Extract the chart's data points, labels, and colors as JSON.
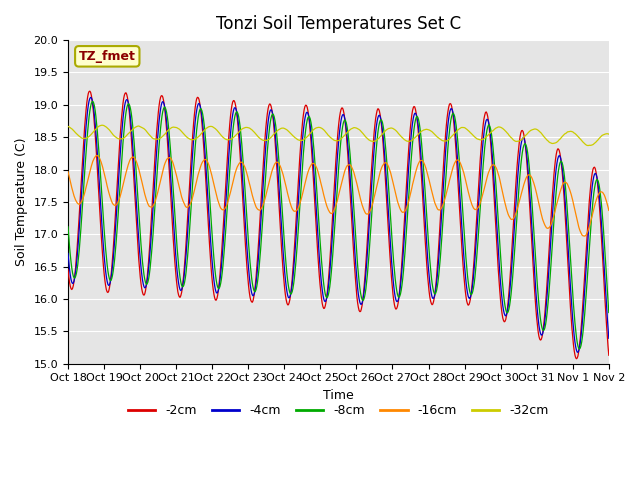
{
  "title": "Tonzi Soil Temperatures Set C",
  "xlabel": "Time",
  "ylabel": "Soil Temperature (C)",
  "ylim": [
    15.0,
    20.0
  ],
  "yticks": [
    15.0,
    15.5,
    16.0,
    16.5,
    17.0,
    17.5,
    18.0,
    18.5,
    19.0,
    19.5,
    20.0
  ],
  "legend_label": "TZ_fmet",
  "series_labels": [
    "-2cm",
    "-4cm",
    "-8cm",
    "-16cm",
    "-32cm"
  ],
  "series_colors": [
    "#dd0000",
    "#0000cc",
    "#00aa00",
    "#ff8800",
    "#cccc00"
  ],
  "background_color": "#e5e5e5",
  "figure_background": "#ffffff",
  "tick_labels": [
    "Oct 18",
    "Oct 19",
    "Oct 20",
    "Oct 21",
    "Oct 22",
    "Oct 23",
    "Oct 24",
    "Oct 25",
    "Oct 26",
    "Oct 27",
    "Oct 28",
    "Oct 29",
    "Oct 30",
    "Oct 31",
    "Nov 1",
    "Nov 2"
  ]
}
